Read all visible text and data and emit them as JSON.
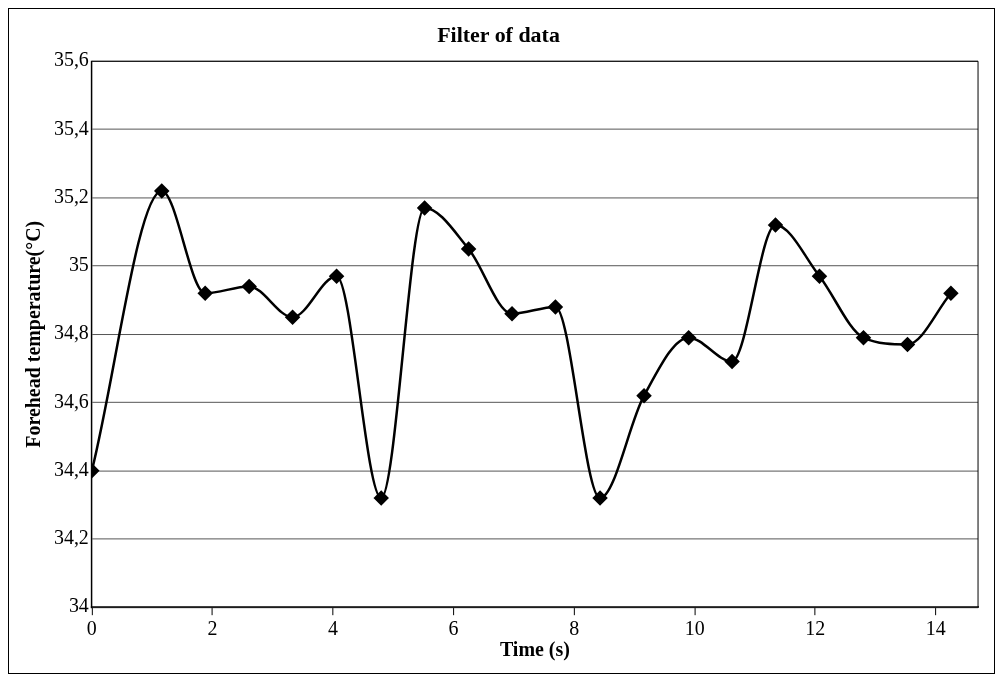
{
  "chart_data": {
    "type": "line",
    "title": "Filter of data",
    "xlabel": "Time (s)",
    "ylabel": "Forehead temperature(°C)",
    "x": [
      0,
      1.16,
      1.88,
      2.61,
      3.33,
      4.06,
      4.8,
      5.52,
      6.25,
      6.97,
      7.69,
      8.43,
      9.16,
      9.9,
      10.62,
      11.34,
      12.07,
      12.8,
      13.53,
      14.25
    ],
    "series": [
      {
        "color": "#000000",
        "values": [
          34.4,
          35.22,
          34.92,
          34.94,
          34.85,
          34.97,
          34.32,
          35.17,
          35.05,
          34.86,
          34.88,
          34.32,
          34.62,
          34.79,
          34.72,
          35.12,
          34.97,
          34.79,
          34.77,
          34.92
        ]
      }
    ],
    "xlim": [
      0,
      14.7
    ],
    "xticks": [
      0,
      2,
      4,
      6,
      8,
      10,
      12,
      14
    ],
    "ylim": [
      34,
      35.6
    ],
    "yticks": [
      34,
      {
        "value": 34.2,
        "label": "34,2"
      },
      {
        "value": 34.4,
        "label": "34,4"
      },
      {
        "value": 34.6,
        "label": "34,6"
      },
      {
        "value": 34.8,
        "label": "34,8"
      },
      35,
      {
        "value": 35.2,
        "label": "35,2"
      },
      {
        "value": 35.4,
        "label": "35,4"
      },
      {
        "value": 35.6,
        "label": "35,6"
      }
    ],
    "grid": "y",
    "legend": false,
    "marker": "diamond",
    "line_style": "solid"
  }
}
